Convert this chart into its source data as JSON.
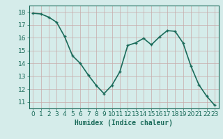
{
  "x": [
    0,
    1,
    2,
    3,
    4,
    5,
    6,
    7,
    8,
    9,
    10,
    11,
    12,
    13,
    14,
    15,
    16,
    17,
    18,
    19,
    20,
    21,
    22,
    23
  ],
  "y": [
    17.9,
    17.85,
    17.6,
    17.2,
    16.1,
    14.6,
    14.0,
    13.1,
    12.3,
    11.65,
    12.3,
    13.35,
    15.4,
    15.6,
    15.95,
    15.45,
    16.05,
    16.55,
    16.5,
    15.6,
    13.8,
    12.35,
    11.45,
    10.75
  ],
  "line_color": "#1a6b5a",
  "marker": "+",
  "marker_size": 3,
  "bg_color": "#d5ecea",
  "grid_color": "#c8aaaa",
  "xlabel": "Humidex (Indice chaleur)",
  "xlim": [
    -0.5,
    23.5
  ],
  "ylim": [
    10.5,
    18.5
  ],
  "yticks": [
    11,
    12,
    13,
    14,
    15,
    16,
    17,
    18
  ],
  "xticks": [
    0,
    1,
    2,
    3,
    4,
    5,
    6,
    7,
    8,
    9,
    10,
    11,
    12,
    13,
    14,
    15,
    16,
    17,
    18,
    19,
    20,
    21,
    22,
    23
  ],
  "line_width": 1.2,
  "xlabel_fontsize": 7,
  "tick_fontsize": 6.5,
  "tick_color": "#1a6b5a",
  "spine_color": "#1a6b5a"
}
